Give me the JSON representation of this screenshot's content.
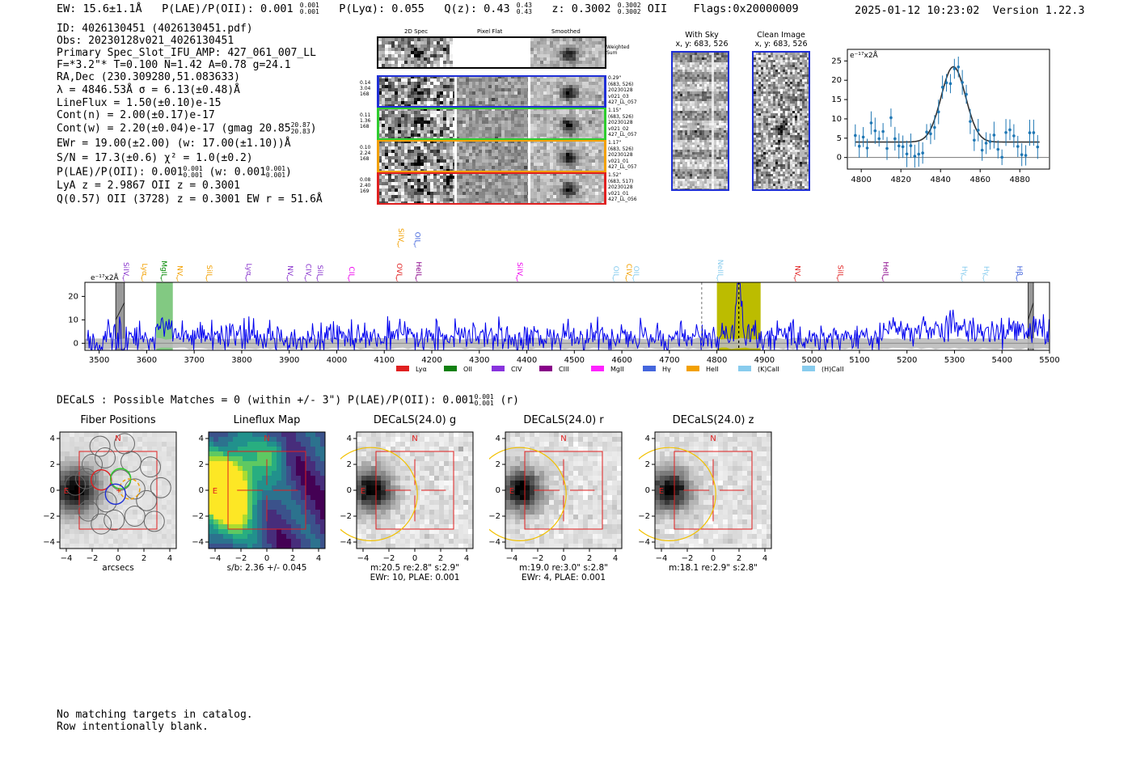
{
  "header": {
    "ew": "EW: 15.6±1.1Å",
    "plae_label": "P(LAE)/P(OII): 0.001",
    "plae_hi": "0.001",
    "plae_lo": "0.001",
    "plya": "P(Lyα): 0.055",
    "qz_label": "Q(z): 0.43",
    "qz_hi": "0.43",
    "qz_lo": "0.43",
    "z_label": "z: 0.3002",
    "z_hi": "0.3002",
    "z_lo": "0.3002",
    "z_line": "OII",
    "flags": "Flags:0x20000009",
    "datetime": "2025-01-12 10:23:02",
    "version": "Version 1.22.3"
  },
  "info": {
    "id": "ID: 4026130451 (4026130451.pdf)",
    "obs": "Obs: 20230128v021_4026130451",
    "primary": "Primary Spec_Slot_IFU_AMP: 427_061_007_LL",
    "params": "F=*3.2\"*  T=0.100  N=1.42  A=0.78  g=24.1",
    "radec": "RA,Dec (230.309280,51.083633)",
    "lambda": "λ = 4846.53Å  σ = 6.13(±0.48)Å",
    "lineflux": "LineFlux = 1.50(±0.10)e-15",
    "contn": "Cont(n) = 2.00(±0.17)e-17",
    "contw": "Cont(w) = 2.20(±0.04)e-17 (gmag 20.85",
    "contw_hi": "20.87",
    "contw_lo": "20.83",
    "contw_end": ")",
    "ewr": "EWr = 19.00(±2.00) (w: 17.00(±1.10))Å",
    "sn": "S/N = 17.3(±0.6)  χ² = 1.0(±0.2)",
    "plae2": "P(LAE)/P(OII): 0.001",
    "plae2_hi": "0.001",
    "plae2_lo": "0.001",
    "plae2_w": "(w: 0.001",
    "plae2_whi": "0.001",
    "plae2_wlo": "0.001",
    "plae2_end": ")",
    "lya": "LyA z = 2.9867  OII z = 0.3001",
    "q": "Q(0.57) OII (3728) z = 0.3001  EW r = 51.6Å"
  },
  "cutouts": {
    "col_headers": [
      "2D Spec",
      "Pixel Flat",
      "Smoothed"
    ],
    "weighted": [
      "Weighted",
      "Sum"
    ],
    "rows": [
      {
        "left": [
          "0.14",
          "3.04",
          "168"
        ],
        "right": [
          "0.29\"",
          "(683, 526)",
          "20230128",
          "v021_03",
          "427_LL_057"
        ],
        "color": "#1f2fd6"
      },
      {
        "left": [
          "0.11",
          "1.36",
          "168"
        ],
        "right": [
          "1.15\"",
          "(683, 526)",
          "20230128",
          "v021_02",
          "427_LL_057"
        ],
        "color": "#2ecc2e"
      },
      {
        "left": [
          "0.10",
          "2.24",
          "168"
        ],
        "right": [
          "1.17\"",
          "(683, 526)",
          "20230128",
          "v021_01",
          "427_LL_057"
        ],
        "color": "#f2a000"
      },
      {
        "left": [
          "0.08",
          "2.40",
          "169"
        ],
        "right": [
          "1.52\"",
          "(683, 517)",
          "20230128",
          "v021_01",
          "427_LL_056"
        ],
        "color": "#e02020"
      }
    ],
    "with_sky": [
      "With Sky",
      "x, y: 683, 526"
    ],
    "clean": [
      "Clean Image",
      "x, y: 683, 526"
    ]
  },
  "fit_plot": {
    "ylabel": "e⁻¹⁷x2Å",
    "xticks": [
      "4800",
      "4820",
      "4840",
      "4860",
      "4880"
    ],
    "yticks": [
      "0",
      "5",
      "10",
      "15",
      "20",
      "25"
    ]
  },
  "chart_data": {
    "type": "line",
    "title": "",
    "ylabel": "e⁻¹⁷x2Å",
    "xlim": [
      3470,
      5500
    ],
    "ylim": [
      -3,
      26
    ],
    "xticks": [
      "3500",
      "3600",
      "3700",
      "3800",
      "3900",
      "4000",
      "4100",
      "4200",
      "4300",
      "4400",
      "4500",
      "4600",
      "4700",
      "4800",
      "4900",
      "5000",
      "5100",
      "5200",
      "5300",
      "5400",
      "5500"
    ],
    "yticks": [
      "0",
      "10",
      "20"
    ],
    "line_color": "#0000ee",
    "highlight_green": [
      3620,
      3655
    ],
    "highlight_yellow": [
      4800,
      4892
    ],
    "gray_bars": [
      [
        3535,
        3553
      ],
      [
        5455,
        5466
      ]
    ],
    "dashed_lines": [
      4768,
      4846
    ],
    "peak": {
      "x": 4846,
      "y": 25
    },
    "line_labels": [
      {
        "x": 3552,
        "label": "SiIV",
        "color": "#8833cc",
        "row": "low"
      },
      {
        "x": 3591,
        "label": "Lyα",
        "color": "#f2a000",
        "row": "low"
      },
      {
        "x": 3632,
        "label": "MgII",
        "color": "#008800",
        "row": "low"
      },
      {
        "x": 3665,
        "label": "NV",
        "color": "#f2a000",
        "row": "low"
      },
      {
        "x": 3727,
        "label": "SiII",
        "color": "#f2a000",
        "row": "low"
      },
      {
        "x": 3810,
        "label": "Lyα",
        "color": "#8833cc",
        "row": "low"
      },
      {
        "x": 3897,
        "label": "NV",
        "color": "#8833cc",
        "row": "low"
      },
      {
        "x": 3935,
        "label": "CIV",
        "color": "#8833cc",
        "row": "low"
      },
      {
        "x": 3960,
        "label": "SiII",
        "color": "#8833cc",
        "row": "low"
      },
      {
        "x": 4026,
        "label": "CII",
        "color": "#ee00ee",
        "row": "low"
      },
      {
        "x": 4127,
        "label": "OVI",
        "color": "#e02020",
        "row": "low"
      },
      {
        "x": 4168,
        "label": "HeII",
        "color": "#880088",
        "row": "low"
      },
      {
        "x": 4130,
        "label": "SiIV",
        "color": "#f2a000",
        "row": "high"
      },
      {
        "x": 4165,
        "label": "OII",
        "color": "#4466dd",
        "row": "high"
      },
      {
        "x": 4380,
        "label": "SiIV",
        "color": "#ee00ee",
        "row": "low"
      },
      {
        "x": 4583,
        "label": "OII",
        "color": "#88ccee",
        "row": "low"
      },
      {
        "x": 4610,
        "label": "CIV",
        "color": "#f2a000",
        "row": "low"
      },
      {
        "x": 4625,
        "label": "OII",
        "color": "#88ccee",
        "row": "low"
      },
      {
        "x": 4802,
        "label": "NeIII",
        "color": "#88ccee",
        "row": "low"
      },
      {
        "x": 4965,
        "label": "NV",
        "color": "#e02020",
        "row": "low"
      },
      {
        "x": 5055,
        "label": "SiII",
        "color": "#e02020",
        "row": "low"
      },
      {
        "x": 5150,
        "label": "HeII",
        "color": "#880088",
        "row": "low"
      },
      {
        "x": 5316,
        "label": "Hγ",
        "color": "#88ccee",
        "row": "low"
      },
      {
        "x": 5362,
        "label": "Hγ",
        "color": "#88ccee",
        "row": "low"
      },
      {
        "x": 5432,
        "label": "Hβ",
        "color": "#4466dd",
        "row": "low"
      }
    ],
    "legend": [
      {
        "label": "Lyα",
        "color": "#e02020"
      },
      {
        "label": "OII",
        "color": "#108010"
      },
      {
        "label": "CIV",
        "color": "#8833dd"
      },
      {
        "label": "CIII",
        "color": "#880088"
      },
      {
        "label": "MgII",
        "color": "#ff22ff"
      },
      {
        "label": "Hγ",
        "color": "#4466dd"
      },
      {
        "label": "HeII",
        "color": "#f2a000"
      },
      {
        "label": "(K)CaII",
        "color": "#88ccee"
      },
      {
        "label": "(H)CaII",
        "color": "#88ccee"
      }
    ]
  },
  "decals": {
    "heading": "DECaLS : Possible Matches = 0 (within +/- 3\")  P(LAE)/P(OII): 0.001",
    "heading_hi": "0.001",
    "heading_lo": "0.001",
    "heading_end": "(r)",
    "xticks": [
      "−4",
      "−2",
      "0",
      "2",
      "4"
    ],
    "yticks": [
      "4",
      "2",
      "0",
      "−2",
      "−4"
    ],
    "north": "N",
    "east": "E",
    "panels": [
      {
        "title": "Fiber Positions",
        "caption1": "arcsecs",
        "caption2": ""
      },
      {
        "title": "Lineflux Map",
        "caption1": "s/b: 2.36 +/- 0.045",
        "caption2": ""
      },
      {
        "title": "DECaLS(24.0) g",
        "caption1": "m:20.5  re:2.8\"  s:2.9\"",
        "caption2": "EWr: 10, PLAE: 0.001"
      },
      {
        "title": "DECaLS(24.0) r",
        "caption1": "m:19.0  re:3.0\"  s:2.8\"",
        "caption2": "EWr: 4, PLAE: 0.001"
      },
      {
        "title": "DECaLS(24.0) z",
        "caption1": "m:18.1  re:2.9\"  s:2.8\"",
        "caption2": ""
      }
    ]
  },
  "footer": {
    "line1": "No matching targets in catalog.",
    "line2": "Row intentionally blank."
  }
}
